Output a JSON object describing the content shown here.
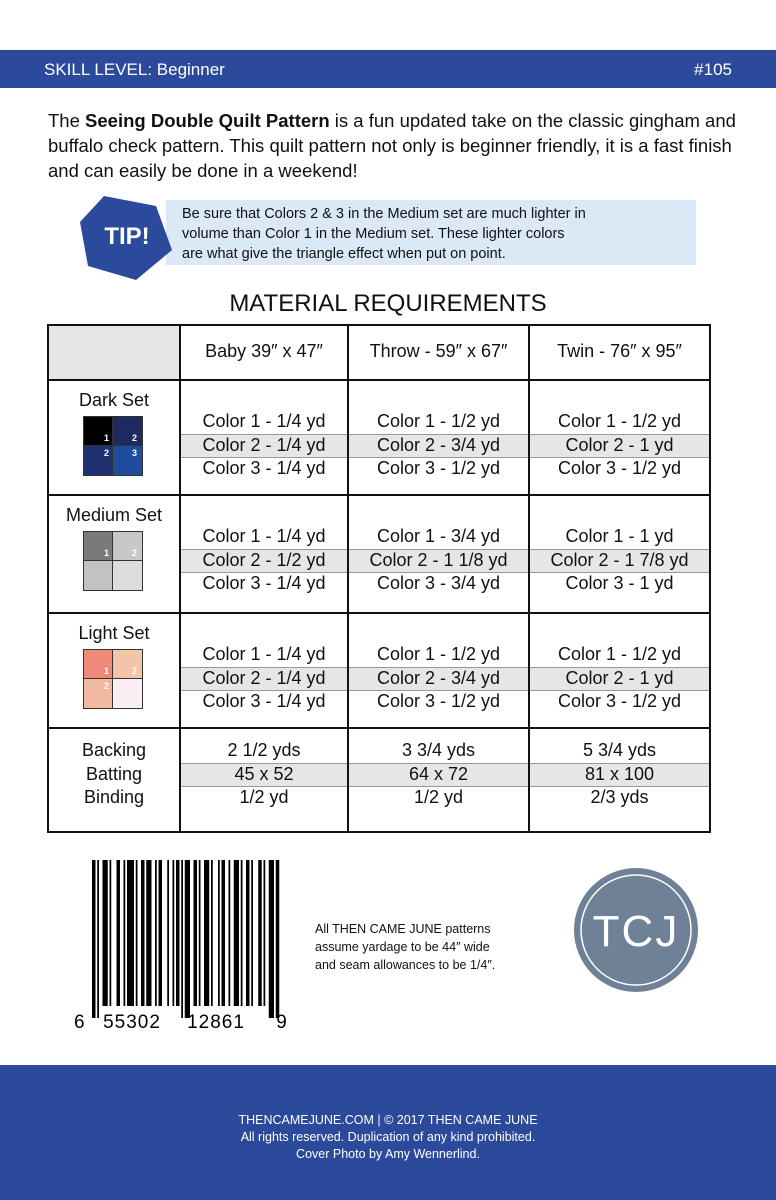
{
  "header": {
    "skill_level": "SKILL LEVEL: Beginner",
    "number": "#105"
  },
  "intro": {
    "before": "The ",
    "bold": "Seeing Double Quilt Pattern",
    "after": " is a fun updated take on the classic gingham and buffalo check pattern. This quilt pattern not only is beginner friendly, it is a fast finish and can easily be done in a weekend!"
  },
  "tip": {
    "badge": "TIP!",
    "lines": [
      "Be sure that Colors 2 & 3 in the Medium set are much lighter in",
      "volume than Color 1 in the Medium set. These lighter colors",
      "are what give the triangle effect when put on point."
    ]
  },
  "table": {
    "title": "MATERIAL REQUIREMENTS",
    "columns": [
      "Baby 39″ x 47″",
      "Throw - 59″ x 67″",
      "Twin - 76″ x 95″"
    ],
    "rows": [
      {
        "label": "Dark Set",
        "swatch": {
          "colors": [
            "#000000",
            "#1c2a5e",
            "#1f2f70",
            "#1f4c9c"
          ],
          "labels": [
            "1",
            "2",
            "2",
            "3"
          ]
        },
        "cells": [
          [
            "Color 1 - 1/4 yd",
            "Color 2 - 1/4 yd",
            "Color 3 - 1/4 yd"
          ],
          [
            "Color 1 - 1/2 yd",
            "Color 2 - 3/4 yd",
            "Color 3 - 1/2 yd"
          ],
          [
            "Color 1 - 1/2 yd",
            "Color 2 - 1 yd",
            "Color 3 - 1/2 yd"
          ]
        ]
      },
      {
        "label": "Medium Set",
        "swatch": {
          "colors": [
            "#7a7a7c",
            "#c8c8ca",
            "#c2c2c4",
            "#dcdcde"
          ],
          "labels": [
            "1",
            "2",
            null,
            null
          ]
        },
        "cells": [
          [
            "Color 1 - 1/4 yd",
            "Color 2 - 1/2 yd",
            "Color 3 - 1/4 yd"
          ],
          [
            "Color 1 - 3/4 yd",
            "Color 2 - 1 1/8 yd",
            "Color 3 - 3/4 yd"
          ],
          [
            "Color 1 - 1 yd",
            "Color 2 - 1 7/8 yd",
            "Color 3 - 1 yd"
          ]
        ]
      },
      {
        "label": "Light Set",
        "swatch": {
          "colors": [
            "#ef8a78",
            "#f4c4a8",
            "#f1b9a0",
            "#fbeef2"
          ],
          "labels": [
            "1",
            "2",
            "2",
            null
          ]
        },
        "cells": [
          [
            "Color 1 - 1/4 yd",
            "Color 2 - 1/4 yd",
            "Color 3 - 1/4 yd"
          ],
          [
            "Color 1 - 1/2 yd",
            "Color 2 - 3/4 yd",
            "Color 3 - 1/2 yd"
          ],
          [
            "Color 1 - 1/2 yd",
            "Color 2 - 1 yd",
            "Color 3 - 1/2 yd"
          ]
        ]
      },
      {
        "labels": [
          "Backing",
          "Batting",
          "Binding"
        ],
        "cells": [
          [
            "2 1/2 yds",
            "45 x 52",
            "1/2 yd"
          ],
          [
            "3 3/4 yds",
            "64 x 72",
            "1/2 yd"
          ],
          [
            "5 3/4 yds",
            "81 x 100",
            "2/3 yds"
          ]
        ]
      }
    ]
  },
  "barcode": {
    "digits": [
      "6",
      "55302",
      "12861",
      "9"
    ]
  },
  "note": {
    "lines": [
      "All THEN CAME JUNE patterns",
      "assume yardage to be 44″ wide",
      "and seam allowances to be 1/4″."
    ]
  },
  "logo": {
    "text": "TCJ"
  },
  "footer": {
    "lines": [
      "THENCAMEJUNE.COM | © 2017 THEN CAME JUNE",
      "All rights reserved. Duplication of any kind prohibited.",
      "Cover Photo by Amy Wennerlind."
    ]
  }
}
